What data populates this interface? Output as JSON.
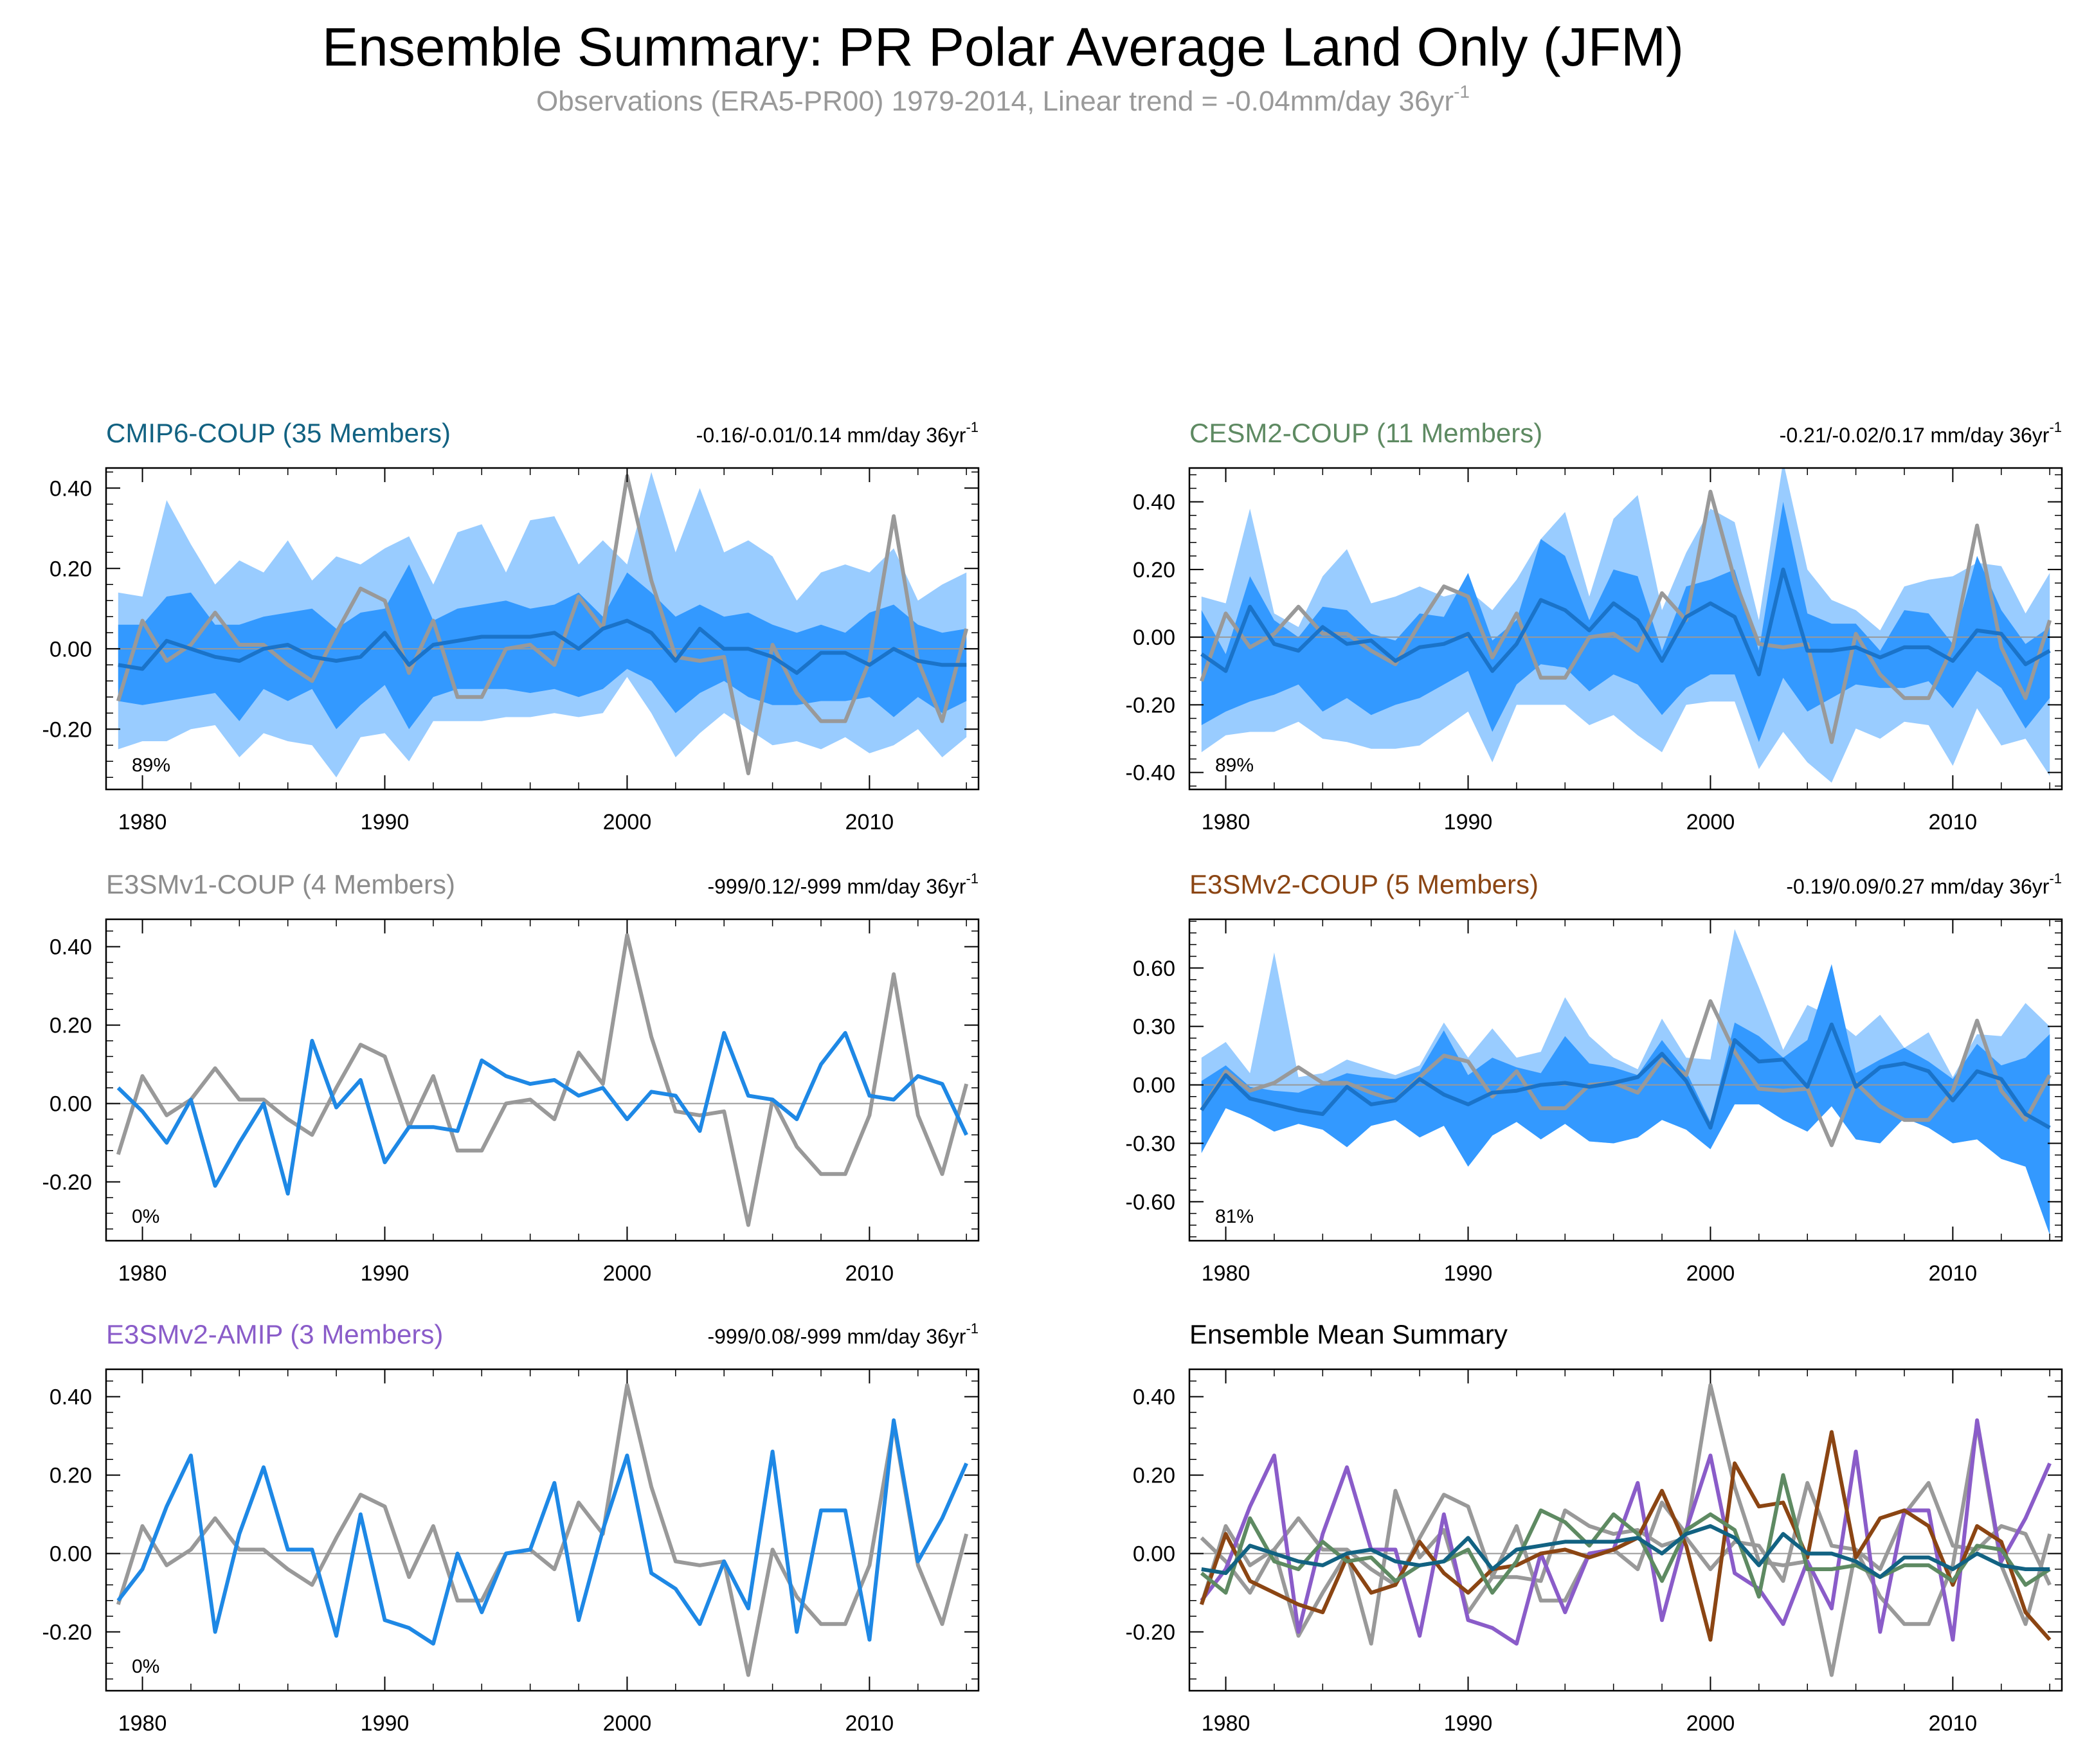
{
  "title": "Ensemble Summary: PR Polar Average Land Only (JFM)",
  "subtitle": "Observations (ERA5-PR00) 1979-2014, Linear trend = -0.04mm/day 36yr",
  "subtitle_sup": "-1",
  "colors": {
    "obs": "#999999",
    "member_line": "#1e88e5",
    "band_outer": "#99ccff",
    "band_inner": "#3399ff",
    "ens_mean": "#1a73c9",
    "cmip6": "#126282",
    "cesm2": "#5e8a62",
    "e3smv1": "#8c8c8c",
    "e3smv2coup": "#8b4513",
    "e3smv2amip": "#8a5cc9",
    "text": "#000000"
  },
  "years_start": 1979,
  "obs": [
    -0.13,
    0.07,
    -0.03,
    0.01,
    0.09,
    0.01,
    0.01,
    -0.04,
    -0.08,
    0.04,
    0.15,
    0.12,
    -0.06,
    0.07,
    -0.12,
    -0.12,
    0.0,
    0.01,
    -0.04,
    0.13,
    0.05,
    0.43,
    0.17,
    -0.02,
    -0.03,
    -0.02,
    -0.31,
    0.01,
    -0.11,
    -0.18,
    -0.18,
    -0.03,
    0.33,
    -0.03,
    -0.18,
    0.05
  ],
  "chart_data": [
    {
      "type": "line",
      "id": "cmip6",
      "title": "CMIP6-COUP (35 Members)",
      "title_color_key": "cmip6",
      "trend_label": "-0.16/-0.01/0.14 mm/day 36yr",
      "trend_sup": "-1",
      "percent_label": "89%",
      "ylim": [
        -0.35,
        0.45
      ],
      "yticks": [
        -0.2,
        0.0,
        0.2,
        0.4
      ],
      "ytick_labels": [
        "-0.20",
        "0.00",
        "0.20",
        "0.40"
      ],
      "xlim": [
        1978.5,
        2014.5
      ],
      "xticks": [
        1980,
        1990,
        2000,
        2010
      ],
      "xtick_labels": [
        "1980",
        "1990",
        "2000",
        "2010"
      ],
      "outer_upper": [
        0.14,
        0.13,
        0.37,
        0.26,
        0.16,
        0.22,
        0.19,
        0.27,
        0.17,
        0.23,
        0.21,
        0.25,
        0.28,
        0.16,
        0.29,
        0.31,
        0.19,
        0.32,
        0.33,
        0.21,
        0.27,
        0.21,
        0.44,
        0.24,
        0.4,
        0.24,
        0.27,
        0.23,
        0.12,
        0.19,
        0.21,
        0.19,
        0.25,
        0.12,
        0.16,
        0.19
      ],
      "inner_upper": [
        0.06,
        0.06,
        0.13,
        0.14,
        0.06,
        0.06,
        0.08,
        0.09,
        0.1,
        0.05,
        0.09,
        0.1,
        0.21,
        0.07,
        0.1,
        0.11,
        0.12,
        0.1,
        0.11,
        0.14,
        0.08,
        0.19,
        0.14,
        0.08,
        0.11,
        0.08,
        0.09,
        0.06,
        0.04,
        0.06,
        0.04,
        0.09,
        0.11,
        0.06,
        0.04,
        0.05
      ],
      "inner_lower": [
        -0.13,
        -0.14,
        -0.13,
        -0.12,
        -0.11,
        -0.18,
        -0.1,
        -0.13,
        -0.1,
        -0.2,
        -0.14,
        -0.09,
        -0.2,
        -0.12,
        -0.1,
        -0.1,
        -0.1,
        -0.11,
        -0.1,
        -0.12,
        -0.1,
        -0.05,
        -0.08,
        -0.16,
        -0.11,
        -0.08,
        -0.12,
        -0.14,
        -0.14,
        -0.13,
        -0.13,
        -0.12,
        -0.17,
        -0.12,
        -0.16,
        -0.13
      ],
      "outer_lower": [
        -0.25,
        -0.23,
        -0.23,
        -0.2,
        -0.19,
        -0.27,
        -0.21,
        -0.23,
        -0.24,
        -0.32,
        -0.22,
        -0.21,
        -0.28,
        -0.18,
        -0.18,
        -0.18,
        -0.17,
        -0.17,
        -0.16,
        -0.17,
        -0.16,
        -0.07,
        -0.16,
        -0.27,
        -0.21,
        -0.16,
        -0.2,
        -0.24,
        -0.23,
        -0.25,
        -0.22,
        -0.26,
        -0.24,
        -0.2,
        -0.27,
        -0.22
      ],
      "mean": [
        -0.04,
        -0.05,
        0.02,
        0.0,
        -0.02,
        -0.03,
        0.0,
        0.01,
        -0.02,
        -0.03,
        -0.02,
        0.04,
        -0.04,
        0.01,
        0.02,
        0.03,
        0.03,
        0.03,
        0.04,
        0.0,
        0.05,
        0.07,
        0.04,
        -0.03,
        0.05,
        0.0,
        0.0,
        -0.02,
        -0.06,
        -0.01,
        -0.01,
        -0.04,
        0.0,
        -0.03,
        -0.04,
        -0.04
      ],
      "members": []
    },
    {
      "type": "line",
      "id": "cesm2",
      "title": "CESM2-COUP (11 Members)",
      "title_color_key": "cesm2",
      "trend_label": "-0.21/-0.02/0.17 mm/day 36yr",
      "trend_sup": "-1",
      "percent_label": "89%",
      "ylim": [
        -0.45,
        0.5
      ],
      "yticks": [
        -0.4,
        -0.2,
        0.0,
        0.2,
        0.4
      ],
      "ytick_labels": [
        "-0.40",
        "-0.20",
        "0.00",
        "0.20",
        "0.40"
      ],
      "xlim": [
        1978.5,
        2014.5
      ],
      "xticks": [
        1980,
        1990,
        2000,
        2010
      ],
      "xtick_labels": [
        "1980",
        "1990",
        "2000",
        "2010"
      ],
      "outer_upper": [
        0.12,
        0.1,
        0.38,
        0.07,
        0.03,
        0.18,
        0.26,
        0.1,
        0.12,
        0.15,
        0.12,
        0.14,
        0.08,
        0.17,
        0.29,
        0.37,
        0.12,
        0.35,
        0.42,
        0.08,
        0.25,
        0.38,
        0.34,
        0.05,
        0.52,
        0.2,
        0.11,
        0.08,
        0.02,
        0.15,
        0.17,
        0.18,
        0.22,
        0.21,
        0.07,
        0.19
      ],
      "inner_upper": [
        0.08,
        -0.05,
        0.18,
        0.05,
        0.0,
        0.09,
        0.08,
        0.01,
        -0.01,
        0.07,
        0.06,
        0.19,
        -0.01,
        0.05,
        0.29,
        0.24,
        0.05,
        0.2,
        0.18,
        -0.04,
        0.15,
        0.17,
        0.2,
        -0.04,
        0.4,
        0.07,
        0.04,
        0.04,
        -0.04,
        0.08,
        0.07,
        -0.02,
        0.24,
        0.08,
        -0.02,
        0.03
      ],
      "inner_lower": [
        -0.26,
        -0.22,
        -0.19,
        -0.17,
        -0.14,
        -0.22,
        -0.18,
        -0.23,
        -0.2,
        -0.18,
        -0.14,
        -0.1,
        -0.28,
        -0.14,
        -0.08,
        -0.09,
        -0.16,
        -0.11,
        -0.14,
        -0.23,
        -0.15,
        -0.11,
        -0.11,
        -0.31,
        -0.12,
        -0.22,
        -0.18,
        -0.14,
        -0.15,
        -0.15,
        -0.13,
        -0.21,
        -0.1,
        -0.15,
        -0.27,
        -0.18
      ],
      "outer_lower": [
        -0.34,
        -0.29,
        -0.28,
        -0.28,
        -0.25,
        -0.3,
        -0.31,
        -0.33,
        -0.33,
        -0.32,
        -0.27,
        -0.22,
        -0.37,
        -0.2,
        -0.2,
        -0.2,
        -0.26,
        -0.23,
        -0.29,
        -0.34,
        -0.2,
        -0.19,
        -0.19,
        -0.39,
        -0.28,
        -0.37,
        -0.43,
        -0.27,
        -0.3,
        -0.25,
        -0.26,
        -0.38,
        -0.21,
        -0.32,
        -0.3,
        -0.41
      ],
      "mean": [
        -0.05,
        -0.1,
        0.09,
        -0.02,
        -0.04,
        0.03,
        -0.02,
        -0.01,
        -0.07,
        -0.03,
        -0.02,
        0.01,
        -0.1,
        -0.02,
        0.11,
        0.08,
        0.02,
        0.1,
        0.05,
        -0.07,
        0.06,
        0.1,
        0.06,
        -0.11,
        0.2,
        -0.04,
        -0.04,
        -0.03,
        -0.06,
        -0.03,
        -0.03,
        -0.07,
        0.02,
        0.01,
        -0.08,
        -0.04
      ],
      "members": []
    },
    {
      "type": "line",
      "id": "e3smv1",
      "title": "E3SMv1-COUP (4 Members)",
      "title_color_key": "e3smv1",
      "trend_label": "-999/0.12/-999 mm/day 36yr",
      "trend_sup": "-1",
      "percent_label": "0%",
      "ylim": [
        -0.35,
        0.47
      ],
      "yticks": [
        -0.2,
        0.0,
        0.2,
        0.4
      ],
      "ytick_labels": [
        "-0.20",
        "0.00",
        "0.20",
        "0.40"
      ],
      "xlim": [
        1978.5,
        2014.5
      ],
      "xticks": [
        1980,
        1990,
        2000,
        2010
      ],
      "xtick_labels": [
        "1980",
        "1990",
        "2000",
        "2010"
      ],
      "outer_upper": [],
      "inner_upper": [],
      "inner_lower": [],
      "outer_lower": [],
      "mean": [
        0.04,
        -0.02,
        -0.1,
        0.01,
        -0.21,
        -0.1,
        0.0,
        -0.23,
        0.16,
        -0.01,
        0.06,
        -0.15,
        -0.06,
        -0.06,
        -0.07,
        0.11,
        0.07,
        0.05,
        0.06,
        0.02,
        0.04,
        -0.04,
        0.03,
        0.02,
        -0.07,
        0.18,
        0.02,
        0.01,
        -0.04,
        0.1,
        0.18,
        0.02,
        0.01,
        0.07,
        0.05,
        -0.08
      ],
      "members": []
    },
    {
      "type": "line",
      "id": "e3smv2coup",
      "title": "E3SMv2-COUP (5 Members)",
      "title_color_key": "e3smv2coup",
      "trend_label": "-0.19/0.09/0.27 mm/day 36yr",
      "trend_sup": "-1",
      "percent_label": "81%",
      "ylim": [
        -0.8,
        0.85
      ],
      "yticks": [
        -0.6,
        -0.3,
        0.0,
        0.3,
        0.6
      ],
      "ytick_labels": [
        "-0.60",
        "-0.30",
        "0.00",
        "0.30",
        "0.60"
      ],
      "xlim": [
        1978.5,
        2014.5
      ],
      "xticks": [
        1980,
        1990,
        2000,
        2010
      ],
      "xtick_labels": [
        "1980",
        "1990",
        "2000",
        "2010"
      ],
      "outer_upper": [
        0.14,
        0.22,
        0.06,
        0.68,
        0.04,
        0.06,
        0.13,
        0.09,
        0.05,
        0.1,
        0.32,
        0.14,
        0.29,
        0.14,
        0.17,
        0.45,
        0.25,
        0.14,
        0.08,
        0.34,
        0.14,
        0.13,
        0.8,
        0.5,
        0.18,
        0.41,
        0.35,
        0.25,
        0.36,
        0.19,
        0.27,
        0.04,
        0.26,
        0.25,
        0.42,
        0.3
      ],
      "inner_upper": [
        0.02,
        0.1,
        -0.01,
        -0.03,
        -0.04,
        0.01,
        0.06,
        0.04,
        0.03,
        0.07,
        0.28,
        0.05,
        0.14,
        0.09,
        0.06,
        0.25,
        0.11,
        0.09,
        0.05,
        0.23,
        0.07,
        -0.19,
        0.32,
        0.25,
        0.14,
        0.23,
        0.62,
        0.06,
        0.13,
        0.19,
        0.12,
        0.03,
        0.21,
        0.1,
        0.14,
        0.26
      ],
      "inner_lower": [
        -0.35,
        -0.12,
        -0.17,
        -0.24,
        -0.2,
        -0.23,
        -0.32,
        -0.21,
        -0.18,
        -0.27,
        -0.21,
        -0.42,
        -0.26,
        -0.19,
        -0.28,
        -0.2,
        -0.29,
        -0.3,
        -0.27,
        -0.18,
        -0.23,
        -0.33,
        -0.1,
        -0.1,
        -0.18,
        -0.24,
        -0.11,
        -0.28,
        -0.3,
        -0.17,
        -0.22,
        -0.3,
        -0.28,
        -0.38,
        -0.42,
        -0.77
      ],
      "outer_lower": [
        -0.35,
        -0.12,
        -0.17,
        -0.24,
        -0.2,
        -0.23,
        -0.32,
        -0.21,
        -0.18,
        -0.27,
        -0.21,
        -0.42,
        -0.26,
        -0.19,
        -0.28,
        -0.2,
        -0.29,
        -0.3,
        -0.27,
        -0.18,
        -0.23,
        -0.33,
        -0.1,
        -0.1,
        -0.18,
        -0.24,
        -0.11,
        -0.28,
        -0.3,
        -0.17,
        -0.22,
        -0.3,
        -0.28,
        -0.38,
        -0.42,
        -0.77
      ],
      "mean": [
        -0.13,
        0.05,
        -0.07,
        -0.1,
        -0.13,
        -0.15,
        -0.01,
        -0.1,
        -0.08,
        0.03,
        -0.05,
        -0.1,
        -0.04,
        -0.03,
        0.0,
        0.01,
        -0.01,
        0.01,
        0.04,
        0.16,
        0.02,
        -0.22,
        0.23,
        0.12,
        0.13,
        -0.01,
        0.31,
        -0.01,
        0.09,
        0.11,
        0.07,
        -0.08,
        0.07,
        0.03,
        -0.15,
        -0.22
      ],
      "members": []
    },
    {
      "type": "line",
      "id": "e3smv2amip",
      "title": "E3SMv2-AMIP (3 Members)",
      "title_color_key": "e3smv2amip",
      "trend_label": "-999/0.08/-999 mm/day 36yr",
      "trend_sup": "-1",
      "percent_label": "0%",
      "ylim": [
        -0.35,
        0.47
      ],
      "yticks": [
        -0.2,
        0.0,
        0.2,
        0.4
      ],
      "ytick_labels": [
        "-0.20",
        "0.00",
        "0.20",
        "0.40"
      ],
      "xlim": [
        1978.5,
        2014.5
      ],
      "xticks": [
        1980,
        1990,
        2000,
        2010
      ],
      "xtick_labels": [
        "1980",
        "1990",
        "2000",
        "2010"
      ],
      "outer_upper": [],
      "inner_upper": [],
      "inner_lower": [],
      "outer_lower": [],
      "mean": [
        -0.12,
        -0.04,
        0.12,
        0.25,
        -0.2,
        0.05,
        0.22,
        0.01,
        0.01,
        -0.21,
        0.1,
        -0.17,
        -0.19,
        -0.23,
        0.0,
        -0.15,
        0.0,
        0.01,
        0.18,
        -0.17,
        0.06,
        0.25,
        -0.05,
        -0.09,
        -0.18,
        -0.02,
        -0.14,
        0.26,
        -0.2,
        0.11,
        0.11,
        -0.22,
        0.34,
        -0.02,
        0.09,
        0.23
      ],
      "members": []
    },
    {
      "type": "line",
      "id": "ensmean",
      "title": "Ensemble Mean Summary",
      "title_color_key": "text",
      "trend_label": "",
      "trend_sup": "",
      "percent_label": "",
      "ylim": [
        -0.35,
        0.47
      ],
      "yticks": [
        -0.2,
        0.0,
        0.2,
        0.4
      ],
      "ytick_labels": [
        "-0.20",
        "0.00",
        "0.20",
        "0.40"
      ],
      "xlim": [
        1978.5,
        2014.5
      ],
      "xticks": [
        1980,
        1990,
        2000,
        2010
      ],
      "xtick_labels": [
        "1980",
        "1990",
        "2000",
        "2010"
      ],
      "outer_upper": [],
      "inner_upper": [],
      "inner_lower": [],
      "outer_lower": [],
      "mean": [],
      "members": [
        {
          "name": "E3SMv1-COUP",
          "color_key": "obs",
          "values": [
            0.04,
            -0.02,
            -0.1,
            0.01,
            -0.21,
            -0.1,
            0.0,
            -0.23,
            0.16,
            -0.01,
            0.06,
            -0.15,
            -0.06,
            -0.06,
            -0.07,
            0.11,
            0.07,
            0.05,
            0.06,
            0.02,
            0.04,
            -0.04,
            0.03,
            0.02,
            -0.07,
            0.18,
            0.02,
            0.01,
            -0.04,
            0.1,
            0.18,
            0.02,
            0.01,
            0.07,
            0.05,
            -0.08
          ]
        },
        {
          "name": "E3SMv2-AMIP",
          "color_key": "e3smv2amip",
          "values": [
            -0.12,
            -0.04,
            0.12,
            0.25,
            -0.2,
            0.05,
            0.22,
            0.01,
            0.01,
            -0.21,
            0.1,
            -0.17,
            -0.19,
            -0.23,
            0.0,
            -0.15,
            0.0,
            0.01,
            0.18,
            -0.17,
            0.06,
            0.25,
            -0.05,
            -0.09,
            -0.18,
            -0.02,
            -0.14,
            0.26,
            -0.2,
            0.11,
            0.11,
            -0.22,
            0.34,
            -0.02,
            0.09,
            0.23
          ]
        },
        {
          "name": "E3SMv2-COUP",
          "color_key": "e3smv2coup",
          "values": [
            -0.13,
            0.05,
            -0.07,
            -0.1,
            -0.13,
            -0.15,
            -0.01,
            -0.1,
            -0.08,
            0.03,
            -0.05,
            -0.1,
            -0.04,
            -0.03,
            0.0,
            0.01,
            -0.01,
            0.01,
            0.04,
            0.16,
            0.02,
            -0.22,
            0.23,
            0.12,
            0.13,
            -0.01,
            0.31,
            -0.01,
            0.09,
            0.11,
            0.07,
            -0.08,
            0.07,
            0.03,
            -0.15,
            -0.22
          ]
        },
        {
          "name": "CESM2-COUP",
          "color_key": "cesm2",
          "values": [
            -0.05,
            -0.1,
            0.09,
            -0.02,
            -0.04,
            0.03,
            -0.02,
            -0.01,
            -0.07,
            -0.03,
            -0.02,
            0.01,
            -0.1,
            -0.02,
            0.11,
            0.08,
            0.02,
            0.1,
            0.05,
            -0.07,
            0.06,
            0.1,
            0.06,
            -0.11,
            0.2,
            -0.04,
            -0.04,
            -0.03,
            -0.06,
            -0.03,
            -0.03,
            -0.07,
            0.02,
            0.01,
            -0.08,
            -0.04
          ]
        },
        {
          "name": "CMIP6-COUP",
          "color_key": "cmip6",
          "values": [
            -0.04,
            -0.05,
            0.02,
            0.0,
            -0.02,
            -0.03,
            0.0,
            0.01,
            -0.02,
            -0.03,
            -0.02,
            0.04,
            -0.04,
            0.01,
            0.02,
            0.03,
            0.03,
            0.03,
            0.04,
            0.0,
            0.05,
            0.07,
            0.04,
            -0.03,
            0.05,
            0.0,
            0.0,
            -0.02,
            -0.06,
            -0.01,
            -0.01,
            -0.04,
            0.0,
            -0.03,
            -0.04,
            -0.04
          ]
        }
      ]
    }
  ]
}
